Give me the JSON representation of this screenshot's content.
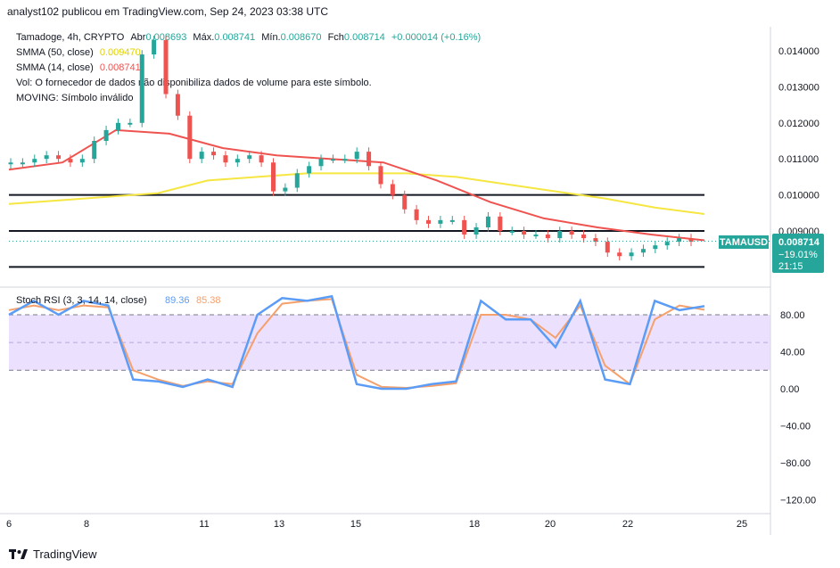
{
  "header": "analyst102 publicou em TradingView.com, Sep 24, 2023 03:38 UTC",
  "legend": {
    "symbol": "Tamadoge, 4h, CRYPTO",
    "open_label": "Abr",
    "open": "0.008693",
    "high_label": "Máx.",
    "high": "0.008741",
    "low_label": "Mín.",
    "low": "0.008670",
    "close_label": "Fch",
    "close": "0.008714",
    "change": "+0.000014 (+0.16%)",
    "sma50_label": "SMMA (50, close)",
    "sma50_value": "0.009470",
    "sma14_label": "SMMA (14, close)",
    "sma14_value": "0.008741",
    "vol_text": "Vol: O fornecedor de dados não disponibiliza dados de volume para este símbolo.",
    "moving_text": "MOVING: Símbolo inválido"
  },
  "price_tag": {
    "symbol": "TAMAUSD",
    "price": "0.008714",
    "change": "−19.01%",
    "countdown": "21:15"
  },
  "price_axis": [
    "0.014000",
    "0.013000",
    "0.012000",
    "0.011000",
    "0.010000",
    "0.009000"
  ],
  "stoch": {
    "label": "Stoch RSI (3, 3, 14, 14, close)",
    "k_value": "89.36",
    "d_value": "85.38"
  },
  "stoch_axis": [
    "80.00",
    "40.00",
    "0.00",
    "−40.00",
    "−80.00",
    "−120.00"
  ],
  "time_axis": [
    "6",
    "8",
    "11",
    "13",
    "15",
    "18",
    "20",
    "22",
    "25"
  ],
  "footer": "TradingView",
  "colors": {
    "up": "#26a69a",
    "down": "#ef5350",
    "sma50": "#f5e642",
    "sma14": "#ef5350",
    "k": "#5b9cf6",
    "d": "#f6a06c",
    "band": "#e6d5ff"
  },
  "chart_data": [
    {
      "type": "candlestick",
      "series": [
        {
          "name": "Tamadoge 4h (approximate visible closes)",
          "values": [
            0.0109,
            0.0109,
            0.011,
            0.0111,
            0.011,
            0.0109,
            0.011,
            0.0115,
            0.0118,
            0.012,
            0.012,
            0.0139,
            0.0143,
            0.0128,
            0.0122,
            0.011,
            0.0112,
            0.0111,
            0.0109,
            0.011,
            0.0111,
            0.0109,
            0.0101,
            0.0102,
            0.0106,
            0.0108,
            0.011,
            0.011,
            0.011,
            0.0112,
            0.0108,
            0.0103,
            0.01,
            0.0096,
            0.0093,
            0.0092,
            0.0093,
            0.0093,
            0.0089,
            0.0091,
            0.0094,
            0.009,
            0.009,
            0.0089,
            0.0089,
            0.0088,
            0.009,
            0.0089,
            0.0088,
            0.0087,
            0.0084,
            0.0083,
            0.0084,
            0.0085,
            0.0086,
            0.0087,
            0.0088,
            0.0087
          ]
        },
        {
          "name": "SMMA (50, close)",
          "values": [
            0.00975,
            0.00985,
            0.00995,
            0.01005,
            0.0104,
            0.0105,
            0.0106,
            0.0106,
            0.0106,
            0.0105,
            0.0103,
            0.0101,
            0.0099,
            0.00965,
            0.00947
          ]
        },
        {
          "name": "SMMA (14, close)",
          "values": [
            0.0107,
            0.0109,
            0.0118,
            0.0117,
            0.0113,
            0.0111,
            0.011,
            0.0109,
            0.0104,
            0.0098,
            0.00935,
            0.0091,
            0.0089,
            0.00874
          ]
        }
      ],
      "horizontal_levels": [
        0.01,
        0.009,
        0.008
      ],
      "ylim": [
        0.0079,
        0.0144
      ]
    },
    {
      "type": "line",
      "title": "Stoch RSI (3, 3, 14, 14, close)",
      "series": [
        {
          "name": "K",
          "values": [
            80,
            95,
            80,
            95,
            90,
            10,
            8,
            2,
            10,
            2,
            80,
            98,
            95,
            100,
            5,
            0,
            0,
            5,
            8,
            95,
            75,
            75,
            45,
            95,
            10,
            5,
            95,
            85,
            89.36
          ]
        },
        {
          "name": "D",
          "values": [
            85,
            90,
            85,
            90,
            88,
            20,
            10,
            3,
            8,
            5,
            60,
            92,
            95,
            97,
            15,
            2,
            1,
            3,
            6,
            80,
            80,
            75,
            55,
            90,
            25,
            5,
            75,
            90,
            85.38
          ]
        }
      ],
      "band": [
        20,
        80
      ],
      "ylim": [
        -130,
        110
      ]
    }
  ]
}
